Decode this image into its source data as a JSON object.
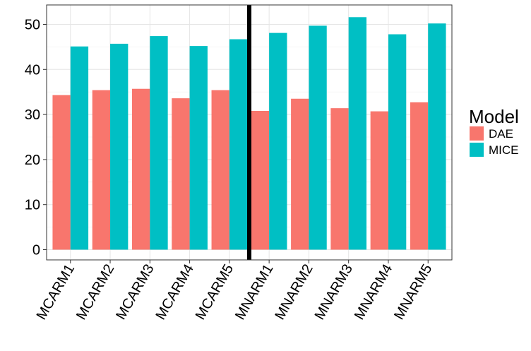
{
  "chart_data": {
    "type": "bar",
    "categories": [
      "MCARM1",
      "MCARM2",
      "MCARM3",
      "MCARM4",
      "MCARM5",
      "MNARM1",
      "MNARM2",
      "MNARM3",
      "MNARM4",
      "MNARM5"
    ],
    "series": [
      {
        "name": "DAE",
        "color": "#F8766D",
        "values": [
          34.3,
          35.4,
          35.7,
          33.6,
          35.4,
          30.8,
          33.5,
          31.4,
          30.7,
          32.7
        ]
      },
      {
        "name": "MICE",
        "color": "#00BFC4",
        "values": [
          45.1,
          45.7,
          47.4,
          45.2,
          46.7,
          48.1,
          49.7,
          51.6,
          47.8,
          50.2
        ]
      }
    ],
    "title": "",
    "xlabel": "",
    "ylabel": "",
    "ylim": [
      0,
      55
    ],
    "yticks": [
      0,
      10,
      20,
      30,
      40,
      50
    ],
    "grid": true,
    "divider_after_category": "MCARM5",
    "legend": {
      "title": "Model",
      "position": "right"
    }
  }
}
